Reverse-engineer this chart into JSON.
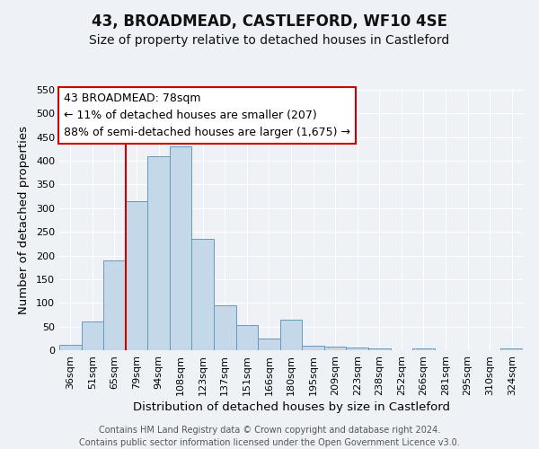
{
  "title": "43, BROADMEAD, CASTLEFORD, WF10 4SE",
  "subtitle": "Size of property relative to detached houses in Castleford",
  "xlabel": "Distribution of detached houses by size in Castleford",
  "ylabel": "Number of detached properties",
  "bar_labels": [
    "36sqm",
    "51sqm",
    "65sqm",
    "79sqm",
    "94sqm",
    "108sqm",
    "123sqm",
    "137sqm",
    "151sqm",
    "166sqm",
    "180sqm",
    "195sqm",
    "209sqm",
    "223sqm",
    "238sqm",
    "252sqm",
    "266sqm",
    "281sqm",
    "295sqm",
    "310sqm",
    "324sqm"
  ],
  "bar_values": [
    12,
    60,
    190,
    315,
    410,
    430,
    235,
    95,
    53,
    25,
    65,
    10,
    8,
    5,
    3,
    0,
    3,
    0,
    0,
    0,
    3
  ],
  "bar_color": "#c5d8ea",
  "bar_edge_color": "#6699bb",
  "vline_x_index": 3,
  "vline_color": "#cc0000",
  "annotation_line1": "43 BROADMEAD: 78sqm",
  "annotation_line2": "← 11% of detached houses are smaller (207)",
  "annotation_line3": "88% of semi-detached houses are larger (1,675) →",
  "annotation_box_facecolor": "#ffffff",
  "annotation_box_edgecolor": "#cc0000",
  "ylim": [
    0,
    550
  ],
  "yticks": [
    0,
    50,
    100,
    150,
    200,
    250,
    300,
    350,
    400,
    450,
    500,
    550
  ],
  "footer_line1": "Contains HM Land Registry data © Crown copyright and database right 2024.",
  "footer_line2": "Contains public sector information licensed under the Open Government Licence v3.0.",
  "background_color": "#eef2f7",
  "grid_color": "#ffffff",
  "title_fontsize": 12,
  "subtitle_fontsize": 10,
  "axis_label_fontsize": 9.5,
  "tick_fontsize": 8,
  "annotation_fontsize": 9,
  "footer_fontsize": 7
}
